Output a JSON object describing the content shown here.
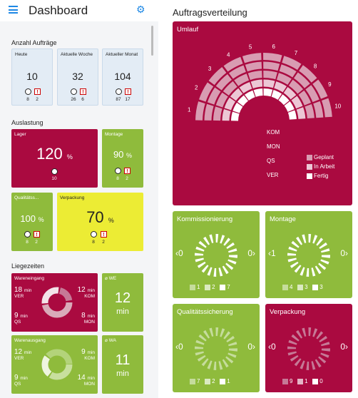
{
  "header": {
    "title": "Dashboard"
  },
  "left": {
    "section_orders": "Anzahl Aufträge",
    "orders": [
      {
        "label": "Heute",
        "value": "10",
        "a": "8",
        "b": "2"
      },
      {
        "label": "Aktuelle Woche",
        "value": "32",
        "a": "26",
        "b": "6"
      },
      {
        "label": "Aktueller Monat",
        "value": "104",
        "a": "87",
        "b": "17"
      }
    ],
    "section_load": "Auslastung",
    "load": [
      {
        "label": "Lager",
        "value": "120",
        "unit": "%",
        "a": "10"
      },
      {
        "label": "Montage",
        "value": "90",
        "unit": "%",
        "a": "8",
        "b": "2"
      },
      {
        "label": "Qualitätss...",
        "value": "100",
        "unit": "%",
        "a": "8",
        "b": "2"
      },
      {
        "label": "Verpackung",
        "value": "70",
        "unit": "%",
        "a": "8",
        "b": "2"
      }
    ],
    "section_times": "Liegezeiten",
    "times": [
      {
        "label": "Wareneingang",
        "tl": "18",
        "tl_u": "min",
        "tl_l": "VER",
        "tr": "12",
        "tr_u": "min",
        "tr_l": "KOM",
        "bl": "9",
        "bl_u": "min",
        "bl_l": "QS",
        "br": "8",
        "br_u": "min",
        "br_l": "MON",
        "side_label": "⌀ WE",
        "side_value": "12",
        "side_unit": "min"
      },
      {
        "label": "Warenausgang",
        "tl": "12",
        "tl_u": "min",
        "tl_l": "VER",
        "tr": "9",
        "tr_u": "min",
        "tr_l": "KOM",
        "bl": "9",
        "bl_u": "min",
        "bl_l": "QS",
        "br": "14",
        "br_u": "min",
        "br_l": "MON",
        "side_label": "⌀ WA",
        "side_value": "11",
        "side_unit": "min"
      }
    ]
  },
  "right": {
    "title": "Auftragsverteilung",
    "umlauf": {
      "title": "Umlauf",
      "scale": [
        "1",
        "2",
        "3",
        "4",
        "5",
        "6",
        "7",
        "8",
        "9",
        "10"
      ],
      "rows": [
        "KOM",
        "MON",
        "QS",
        "VER"
      ],
      "legend": [
        "Geplant",
        "In Arbeit",
        "Fertig"
      ],
      "values": {
        "KOM": {
          "Geplant": 10,
          "In Arbeit": 0,
          "Fertig": 0
        },
        "MON": {
          "Geplant": 0,
          "In Arbeit": 0,
          "Fertig": 0
        },
        "QS": {
          "Geplant": 0,
          "In Arbeit": 0,
          "Fertig": 0
        },
        "VER": {
          "Geplant": 0,
          "In Arbeit": 0,
          "Fertig": 0
        }
      }
    },
    "panels": [
      {
        "title": "Kommissionierung",
        "left": "0",
        "right": "0",
        "legend": [
          "1",
          "2",
          "7"
        ]
      },
      {
        "title": "Montage",
        "left": "1",
        "right": "0",
        "legend": [
          "4",
          "3",
          "3"
        ]
      },
      {
        "title": "Qualitätssicherung",
        "left": "0",
        "right": "0",
        "legend": [
          "7",
          "2",
          "1"
        ]
      },
      {
        "title": "Verpackung",
        "left": "0",
        "right": "0",
        "legend": [
          "9",
          "1",
          "0"
        ]
      }
    ]
  },
  "colors": {
    "crimson": "#aa0a40",
    "green": "#8fbb3c",
    "yellow": "#ecec34",
    "blue": "#e3ecf5",
    "accent": "#1e88e5"
  }
}
